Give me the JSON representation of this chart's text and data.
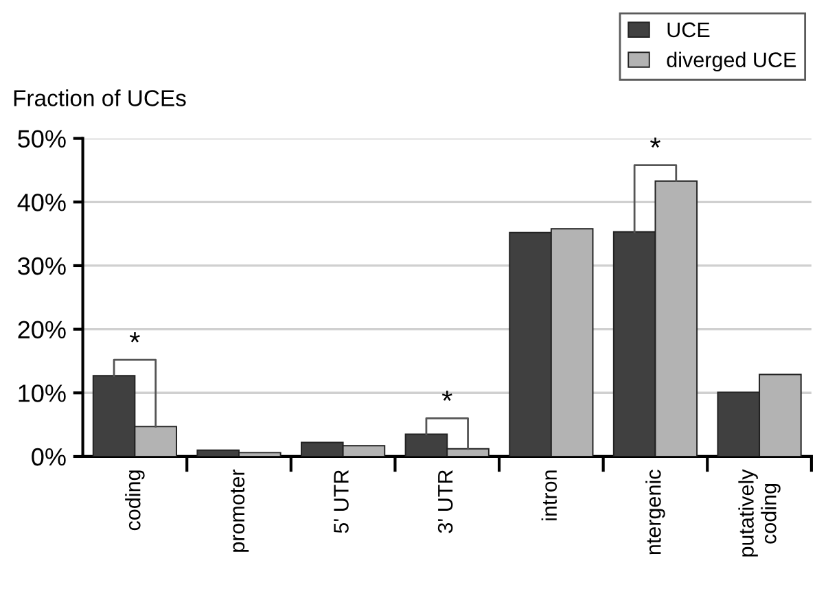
{
  "chart_data": {
    "type": "bar",
    "ylabel": "Fraction of UCEs",
    "categories": [
      "coding",
      "promoter",
      "5' UTR",
      "3' UTR",
      "intron",
      "ntergenic",
      "putatively\ncoding"
    ],
    "series": [
      {
        "name": "UCE",
        "color": "#404040",
        "values": [
          12.7,
          1.0,
          2.2,
          3.5,
          35.2,
          35.3,
          10.1
        ]
      },
      {
        "name": "diverged UCE",
        "color": "#b3b3b3",
        "values": [
          4.7,
          0.6,
          1.7,
          1.2,
          35.8,
          43.3,
          12.9
        ]
      }
    ],
    "ylim": [
      0,
      50
    ],
    "yticks": [
      {
        "value": 0,
        "label": "0%"
      },
      {
        "value": 10,
        "label": "10%"
      },
      {
        "value": 20,
        "label": "20%"
      },
      {
        "value": 30,
        "label": "30%"
      },
      {
        "value": 40,
        "label": "40%"
      },
      {
        "value": 50,
        "label": "50%"
      }
    ],
    "grid": "y",
    "legend": "top right",
    "annotations": [
      {
        "text": "*",
        "x": "coding",
        "y": 12.7
      },
      {
        "text": "*",
        "x": "3' UTR",
        "y": 3.5
      },
      {
        "text": "*",
        "x": "ntergenic",
        "y": 43.3
      }
    ]
  }
}
